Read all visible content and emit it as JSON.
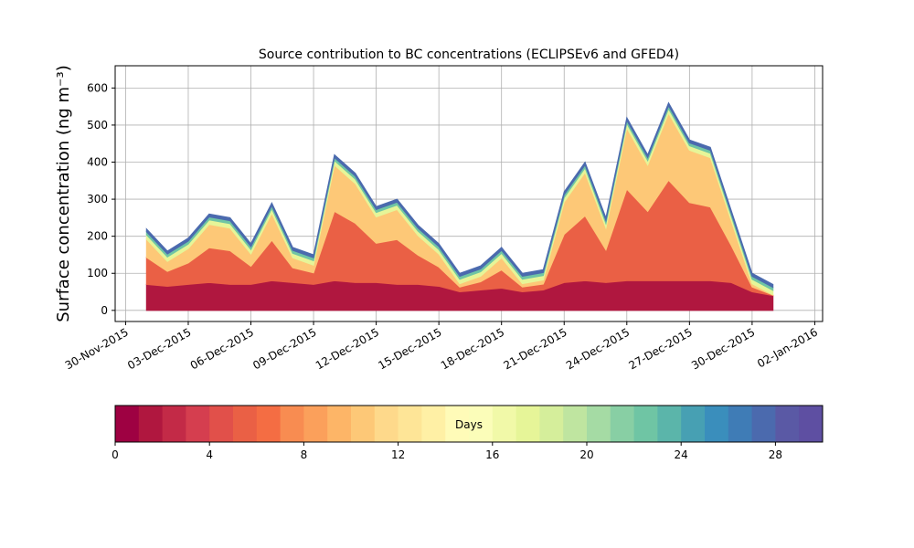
{
  "chart_data": {
    "type": "stacked_area",
    "title": "Source contribution to BC concentrations (ECLIPSEv6 and GFED4)",
    "y_label": "Surface concentration (ng m⁻³)",
    "x": [
      "2015-12-01",
      "2015-12-02",
      "2015-12-03",
      "2015-12-04",
      "2015-12-05",
      "2015-12-06",
      "2015-12-07",
      "2015-12-08",
      "2015-12-09",
      "2015-12-10",
      "2015-12-11",
      "2015-12-12",
      "2015-12-13",
      "2015-12-14",
      "2015-12-15",
      "2015-12-16",
      "2015-12-17",
      "2015-12-18",
      "2015-12-19",
      "2015-12-20",
      "2015-12-21",
      "2015-12-22",
      "2015-12-23",
      "2015-12-24",
      "2015-12-25",
      "2015-12-26",
      "2015-12-27",
      "2015-12-28",
      "2015-12-29",
      "2015-12-30",
      "2015-12-31"
    ],
    "series": [
      {
        "color": "#b0173f",
        "values": [
          70,
          65,
          70,
          75,
          70,
          70,
          80,
          75,
          70,
          80,
          75,
          75,
          70,
          70,
          65,
          50,
          55,
          60,
          50,
          55,
          75,
          80,
          75,
          80,
          80,
          80,
          80,
          80,
          75,
          50,
          40
        ]
      },
      {
        "color": "#ea6045",
        "values": [
          73,
          40,
          58,
          94,
          91,
          49,
          109,
          40,
          31,
          187,
          160,
          106,
          121,
          79,
          52,
          13,
          22,
          49,
          13,
          16,
          130,
          175,
          88,
          247,
          187,
          271,
          211,
          199,
          100,
          13,
          1
        ]
      },
      {
        "color": "#fdc877",
        "values": [
          49,
          27,
          39,
          63,
          61,
          33,
          73,
          27,
          21,
          125,
          107,
          71,
          81,
          53,
          35,
          9,
          15,
          33,
          9,
          11,
          87,
          117,
          59,
          165,
          125,
          181,
          141,
          133,
          67,
          9,
          1
        ]
      },
      {
        "color": "#e6f598",
        "values": [
          12,
          12,
          12,
          12,
          12,
          12,
          12,
          12,
          12,
          12,
          12,
          12,
          12,
          12,
          12,
          12,
          12,
          12,
          12,
          12,
          12,
          12,
          12,
          12,
          12,
          12,
          12,
          12,
          12,
          12,
          12
        ]
      },
      {
        "color": "#6fc5a4",
        "values": [
          8,
          8,
          8,
          8,
          8,
          8,
          8,
          8,
          8,
          8,
          8,
          8,
          8,
          8,
          8,
          8,
          8,
          8,
          8,
          8,
          8,
          8,
          8,
          8,
          8,
          8,
          8,
          8,
          8,
          8,
          8
        ]
      },
      {
        "color": "#4b6aae",
        "values": [
          8,
          8,
          8,
          8,
          8,
          8,
          8,
          8,
          8,
          8,
          8,
          8,
          8,
          8,
          8,
          8,
          8,
          8,
          8,
          8,
          8,
          8,
          8,
          8,
          8,
          8,
          8,
          8,
          8,
          8,
          8
        ]
      }
    ],
    "xlim": [
      "2015-11-29T12:00",
      "2016-01-02T09:00"
    ],
    "xticks": [
      {
        "value": "2015-11-30",
        "label": "30-Nov-2015"
      },
      {
        "value": "2015-12-03",
        "label": "03-Dec-2015"
      },
      {
        "value": "2015-12-06",
        "label": "06-Dec-2015"
      },
      {
        "value": "2015-12-09",
        "label": "09-Dec-2015"
      },
      {
        "value": "2015-12-12",
        "label": "12-Dec-2015"
      },
      {
        "value": "2015-12-15",
        "label": "15-Dec-2015"
      },
      {
        "value": "2015-12-18",
        "label": "18-Dec-2015"
      },
      {
        "value": "2015-12-21",
        "label": "21-Dec-2015"
      },
      {
        "value": "2015-12-24",
        "label": "24-Dec-2015"
      },
      {
        "value": "2015-12-27",
        "label": "27-Dec-2015"
      },
      {
        "value": "2015-12-30",
        "label": "30-Dec-2015"
      },
      {
        "value": "2016-01-02",
        "label": "02-Jan-2016"
      }
    ],
    "ylim": [
      -30,
      660
    ],
    "yticks": [
      0,
      100,
      200,
      300,
      400,
      500,
      600
    ],
    "grid": true,
    "colorbar": {
      "label": "Days",
      "lim": [
        0,
        30
      ],
      "ticks": [
        0,
        4,
        8,
        12,
        16,
        20,
        24,
        28
      ],
      "colors": [
        "#9e0142",
        "#b0173f",
        "#c32a47",
        "#d53e4f",
        "#e1504a",
        "#ea6045",
        "#f46d43",
        "#f88c51",
        "#fba05b",
        "#fdb567",
        "#fdc877",
        "#fed98b",
        "#fee597",
        "#fff0a5",
        "#fffbb8",
        "#fbfdb9",
        "#f1f9a8",
        "#e6f598",
        "#d5ee9b",
        "#bfe5a0",
        "#a5dba4",
        "#88cfa4",
        "#6fc5a4",
        "#5bb5aa",
        "#47a0b3",
        "#3a8ebc",
        "#3f7cb6",
        "#4b6aae",
        "#5a59a5",
        "#5e4fa2"
      ]
    }
  }
}
